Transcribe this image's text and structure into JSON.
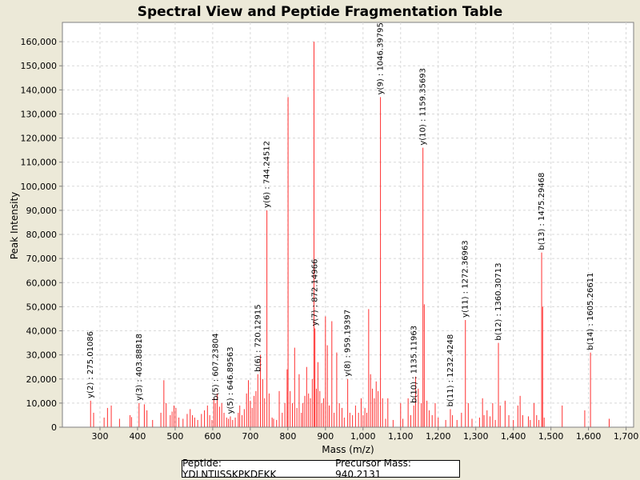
{
  "chart_data": {
    "type": "bar",
    "title": "Spectral View and Peptide Fragmentation Table",
    "xlabel": "Mass (m/z)",
    "ylabel": "Peak Intensity",
    "xlim": [
      200,
      1720
    ],
    "ylim": [
      0,
      168000
    ],
    "xticks": [
      300,
      400,
      500,
      600,
      700,
      800,
      900,
      1000,
      1100,
      1200,
      1300,
      1400,
      1500,
      1600,
      1700
    ],
    "xtick_labels": [
      "300",
      "400",
      "500",
      "600",
      "700",
      "800",
      "900",
      "1,000",
      "1,100",
      "1,200",
      "1,300",
      "1,400",
      "1,500",
      "1,600",
      "1,700"
    ],
    "yticks": [
      0,
      10000,
      20000,
      30000,
      40000,
      50000,
      60000,
      70000,
      80000,
      90000,
      100000,
      110000,
      120000,
      130000,
      140000,
      150000,
      160000
    ],
    "ytick_labels": [
      "0",
      "10,000",
      "20,000",
      "30,000",
      "40,000",
      "50,000",
      "60,000",
      "70,000",
      "80,000",
      "90,000",
      "100,000",
      "110,000",
      "120,000",
      "130,000",
      "140,000",
      "150,000",
      "160,000"
    ],
    "grid": true,
    "bar_color": "#ff3030",
    "peaks": [
      [
        275.0,
        11000
      ],
      [
        283,
        6000
      ],
      [
        311,
        4000
      ],
      [
        320,
        8000
      ],
      [
        330,
        9000
      ],
      [
        352,
        3500
      ],
      [
        380,
        5000
      ],
      [
        384,
        4200
      ],
      [
        404.0,
        10000
      ],
      [
        418,
        9500
      ],
      [
        425,
        7000
      ],
      [
        440,
        3000
      ],
      [
        462,
        6000
      ],
      [
        470,
        19500
      ],
      [
        476,
        10000
      ],
      [
        487,
        5000
      ],
      [
        492,
        6500
      ],
      [
        497,
        9000
      ],
      [
        502,
        8000
      ],
      [
        510,
        4000
      ],
      [
        521,
        3500
      ],
      [
        532,
        5500
      ],
      [
        540,
        7500
      ],
      [
        546,
        5000
      ],
      [
        552,
        4000
      ],
      [
        560,
        3000
      ],
      [
        570,
        5500
      ],
      [
        578,
        7000
      ],
      [
        586,
        9000
      ],
      [
        592,
        5000
      ],
      [
        598,
        3000
      ],
      [
        603,
        12000
      ],
      [
        607.2,
        10000
      ],
      [
        612,
        14000
      ],
      [
        618,
        8500
      ],
      [
        624,
        10000
      ],
      [
        630,
        6000
      ],
      [
        637,
        4000
      ],
      [
        642,
        3500
      ],
      [
        647.0,
        4500
      ],
      [
        653,
        3000
      ],
      [
        660,
        4000
      ],
      [
        668,
        6000
      ],
      [
        672,
        9000
      ],
      [
        678,
        5000
      ],
      [
        684,
        7500
      ],
      [
        690,
        14000
      ],
      [
        695,
        19500
      ],
      [
        700,
        11000
      ],
      [
        705,
        8000
      ],
      [
        710,
        13000
      ],
      [
        715,
        15000
      ],
      [
        720.1,
        22000
      ],
      [
        727,
        30000
      ],
      [
        733,
        20000
      ],
      [
        738,
        12000
      ],
      [
        744.2,
        90000
      ],
      [
        750,
        14000
      ],
      [
        758,
        4000
      ],
      [
        762,
        3500
      ],
      [
        770,
        3000
      ],
      [
        777,
        15000
      ],
      [
        785,
        6000
      ],
      [
        792,
        10000
      ],
      [
        798,
        24000
      ],
      [
        800.5,
        137000
      ],
      [
        806,
        15000
      ],
      [
        812,
        10000
      ],
      [
        818,
        33000
      ],
      [
        824,
        8000
      ],
      [
        830,
        22000
      ],
      [
        836,
        6000
      ],
      [
        840,
        10000
      ],
      [
        845,
        13000
      ],
      [
        850,
        25000
      ],
      [
        855,
        14000
      ],
      [
        860,
        12000
      ],
      [
        865,
        20000
      ],
      [
        869.5,
        160000
      ],
      [
        872.1,
        41000
      ],
      [
        876,
        16000
      ],
      [
        880,
        27000
      ],
      [
        885,
        15000
      ],
      [
        890,
        10000
      ],
      [
        895,
        12000
      ],
      [
        900,
        46000
      ],
      [
        905,
        34000
      ],
      [
        910,
        9000
      ],
      [
        917,
        44000
      ],
      [
        923,
        6000
      ],
      [
        930,
        31000
      ],
      [
        937,
        10000
      ],
      [
        944,
        8000
      ],
      [
        950,
        4000
      ],
      [
        959.2,
        20000
      ],
      [
        965,
        6000
      ],
      [
        972,
        5000
      ],
      [
        980,
        9000
      ],
      [
        988,
        6000
      ],
      [
        995,
        12000
      ],
      [
        1000,
        5000
      ],
      [
        1005,
        8000
      ],
      [
        1010,
        6000
      ],
      [
        1015,
        49000
      ],
      [
        1020,
        22000
      ],
      [
        1025,
        16000
      ],
      [
        1030,
        12000
      ],
      [
        1035,
        19000
      ],
      [
        1040,
        15000
      ],
      [
        1046.4,
        137000
      ],
      [
        1052,
        12000
      ],
      [
        1060,
        3500
      ],
      [
        1066,
        12000
      ],
      [
        1080,
        3000
      ],
      [
        1100,
        10000
      ],
      [
        1106,
        3500
      ],
      [
        1120,
        12000
      ],
      [
        1127,
        5000
      ],
      [
        1135.1,
        9000
      ],
      [
        1140,
        21000
      ],
      [
        1147,
        16000
      ],
      [
        1155,
        10000
      ],
      [
        1159.4,
        116000
      ],
      [
        1163,
        51000
      ],
      [
        1170,
        11000
      ],
      [
        1176,
        7000
      ],
      [
        1184,
        5000
      ],
      [
        1192,
        10000
      ],
      [
        1200,
        4000
      ],
      [
        1220,
        3000
      ],
      [
        1232.4,
        7500
      ],
      [
        1238,
        5000
      ],
      [
        1250,
        3000
      ],
      [
        1262,
        6000
      ],
      [
        1272.4,
        44500
      ],
      [
        1280,
        10000
      ],
      [
        1290,
        3500
      ],
      [
        1310,
        4000
      ],
      [
        1318,
        12000
      ],
      [
        1322,
        5000
      ],
      [
        1330,
        7000
      ],
      [
        1338,
        4500
      ],
      [
        1345,
        10000
      ],
      [
        1352,
        3000
      ],
      [
        1360.3,
        35000
      ],
      [
        1365,
        9000
      ],
      [
        1378,
        11000
      ],
      [
        1388,
        5000
      ],
      [
        1400,
        3000
      ],
      [
        1412,
        9000
      ],
      [
        1418,
        13000
      ],
      [
        1425,
        5000
      ],
      [
        1440,
        4500
      ],
      [
        1445,
        3000
      ],
      [
        1455,
        10000
      ],
      [
        1462,
        5000
      ],
      [
        1468,
        3000
      ],
      [
        1475.3,
        72500
      ],
      [
        1478,
        50000
      ],
      [
        1482,
        4000
      ],
      [
        1530,
        9000
      ],
      [
        1590,
        7000
      ],
      [
        1605.3,
        31000
      ],
      [
        1655,
        3500
      ]
    ],
    "annotations": [
      {
        "label": "y(2) : 275.01086",
        "x": 275.0,
        "y": 11000
      },
      {
        "label": "y(3) : 403.88818",
        "x": 404.0,
        "y": 10000
      },
      {
        "label": "b(5) : 607.23804",
        "x": 607.2,
        "y": 10000
      },
      {
        "label": "y(5) : 646.89563",
        "x": 647.0,
        "y": 4500
      },
      {
        "label": "b(6) : 720.12915",
        "x": 720.1,
        "y": 22000
      },
      {
        "label": "y(6) : 744.24512",
        "x": 744.2,
        "y": 90000
      },
      {
        "label": "y(7) : 872.14966",
        "x": 872.1,
        "y": 41000
      },
      {
        "label": "y(8) : 959.19397",
        "x": 959.2,
        "y": 20000
      },
      {
        "label": "y(9) : 1046.39795",
        "x": 1046.4,
        "y": 137000
      },
      {
        "label": "b(10) : 1135.11963",
        "x": 1135.1,
        "y": 9000
      },
      {
        "label": "y(10) : 1159.35693",
        "x": 1159.4,
        "y": 116000
      },
      {
        "label": "b(11) : 1232.4248",
        "x": 1232.4,
        "y": 7500
      },
      {
        "label": "y(11) : 1272.36963",
        "x": 1272.4,
        "y": 44500
      },
      {
        "label": "b(12) : 1360.30713",
        "x": 1360.3,
        "y": 35000
      },
      {
        "label": "b(13) : 1475.29468",
        "x": 1475.3,
        "y": 72500
      },
      {
        "label": "b(14) : 1605.26611",
        "x": 1605.3,
        "y": 31000
      }
    ]
  },
  "legend": {
    "peptide": "Peptide: YDLNTIISSKPKDEKK",
    "precursor": "Precursor Mass: 940.2131"
  }
}
